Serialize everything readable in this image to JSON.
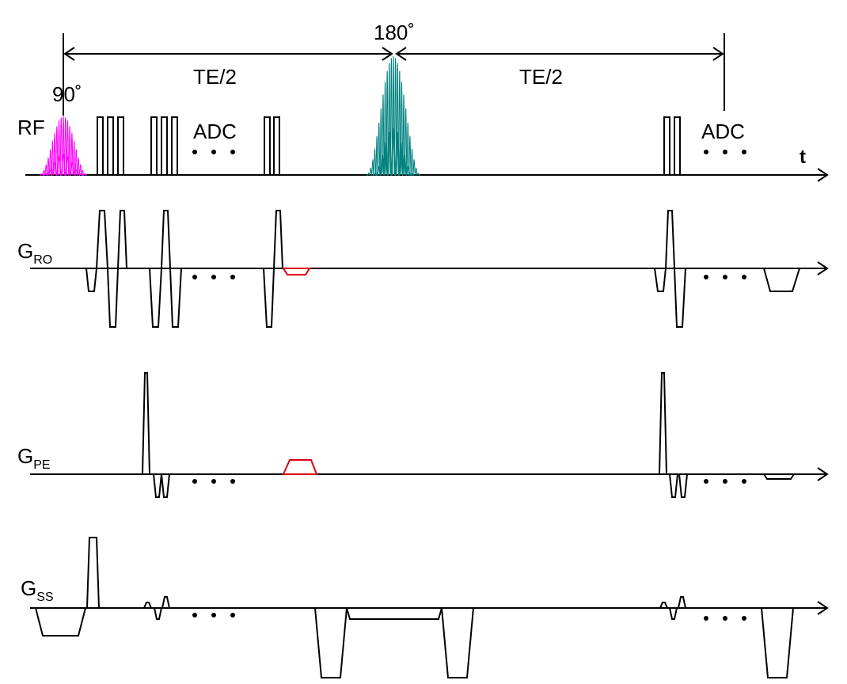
{
  "labels": {
    "flip_angle": "90˚",
    "refocus_angle": "180˚",
    "te_half_left": "TE/2",
    "te_half_right": "TE/2",
    "rf": "RF",
    "adc_left": "ADC",
    "adc_right": "ADC",
    "time_axis": "t",
    "gro_main": "G",
    "gro_sub": "RO",
    "gpe_main": "G",
    "gpe_sub": "PE",
    "gss_main": "G",
    "gss_sub": "SS"
  },
  "colors": {
    "excitation_pulse": "#ff00ff",
    "refocusing_pulse": "#00827f",
    "highlight_gradient": "#e0000f",
    "line": "#000000"
  }
}
